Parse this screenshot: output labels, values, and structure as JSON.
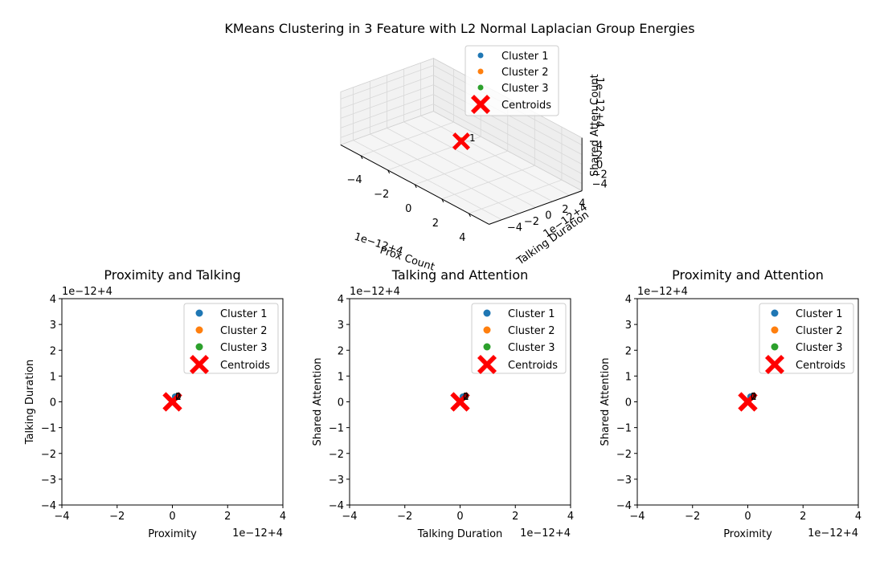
{
  "figure_title": "KMeans Clustering in 3 Feature with L2 Normal Laplacian Group Energies",
  "legend": {
    "series": [
      "Cluster 1",
      "Cluster 2",
      "Cluster 3"
    ],
    "centroids": "Centroids"
  },
  "colors": {
    "cluster_1": "#1f77b4",
    "cluster_2": "#ff7f0e",
    "cluster_3": "#2ca02c",
    "centroid": "#ff0000"
  },
  "chart_data": [
    {
      "type": "scatter3d",
      "title": "",
      "xlabel": "Prox Count",
      "ylabel": "Talking Duration",
      "zlabel": "Shared Atten Count",
      "offset_text": "1e−12+4",
      "ticks": [
        "−4",
        "−2",
        "0",
        "2",
        "4"
      ],
      "xlim": [
        -4,
        4
      ],
      "ylim": [
        -4,
        4
      ],
      "zlim": [
        -4,
        4
      ],
      "grid": true,
      "legend_position": "top-right",
      "points": [
        {
          "cluster": "Cluster 2",
          "x": 0,
          "y": 0,
          "z": 0,
          "label": "1"
        }
      ],
      "centroids": [
        {
          "x": 0,
          "y": 0,
          "z": 0
        }
      ]
    },
    {
      "type": "scatter",
      "title": "Proximity and Talking",
      "xlabel": "Proximity",
      "ylabel": "Talking Duration",
      "offset_x": "1e−12+4",
      "offset_y": "1e−12+4",
      "xticks": [
        "−4",
        "−2",
        "0",
        "2",
        "4"
      ],
      "yticks": [
        "−4",
        "−3",
        "−2",
        "−1",
        "0",
        "1",
        "2",
        "3",
        "4"
      ],
      "xlim": [
        -4,
        4
      ],
      "ylim": [
        -4,
        4
      ],
      "grid": false,
      "legend_position": "top-right",
      "points": [
        {
          "cluster": "Cluster 3",
          "x": 0.1,
          "y": 0.2
        },
        {
          "cluster": "Cluster 2",
          "x": 0.1,
          "y": 0.2
        },
        {
          "cluster": "Cluster 1",
          "x": 0.1,
          "y": 0.2
        }
      ],
      "point_labels": [
        {
          "x": 0.1,
          "y": 0.2,
          "text": "2"
        },
        {
          "x": 0.1,
          "y": 0.2,
          "text": "1"
        },
        {
          "x": 0.1,
          "y": 0.2,
          "text": "0"
        }
      ],
      "centroids": [
        {
          "x": 0,
          "y": 0
        },
        {
          "x": 0,
          "y": 0
        },
        {
          "x": 0,
          "y": 0
        }
      ]
    },
    {
      "type": "scatter",
      "title": "Talking and Attention",
      "xlabel": "Talking Duration",
      "ylabel": "Shared Attention",
      "offset_x": "1e−12+4",
      "offset_y": "1e−12+4",
      "xticks": [
        "−4",
        "−2",
        "0",
        "2",
        "4"
      ],
      "yticks": [
        "−4",
        "−3",
        "−2",
        "−1",
        "0",
        "1",
        "2",
        "3",
        "4"
      ],
      "xlim": [
        -4,
        4
      ],
      "ylim": [
        -4,
        4
      ],
      "grid": false,
      "legend_position": "top-right",
      "points": [
        {
          "cluster": "Cluster 3",
          "x": 0.1,
          "y": 0.2
        },
        {
          "cluster": "Cluster 2",
          "x": 0.1,
          "y": 0.2
        },
        {
          "cluster": "Cluster 1",
          "x": 0.1,
          "y": 0.2
        }
      ],
      "point_labels": [
        {
          "x": 0.1,
          "y": 0.2,
          "text": "2"
        },
        {
          "x": 0.1,
          "y": 0.2,
          "text": "1"
        },
        {
          "x": 0.1,
          "y": 0.2,
          "text": "0"
        }
      ],
      "centroids": [
        {
          "x": 0,
          "y": 0
        },
        {
          "x": 0,
          "y": 0
        },
        {
          "x": 0,
          "y": 0
        }
      ]
    },
    {
      "type": "scatter",
      "title": "Proximity and Attention",
      "xlabel": "Proximity",
      "ylabel": "Shared Attention",
      "offset_x": "1e−12+4",
      "offset_y": "1e−12+4",
      "xticks": [
        "−4",
        "−2",
        "0",
        "2",
        "4"
      ],
      "yticks": [
        "−4",
        "−3",
        "−2",
        "−1",
        "0",
        "1",
        "2",
        "3",
        "4"
      ],
      "xlim": [
        -4,
        4
      ],
      "ylim": [
        -4,
        4
      ],
      "grid": false,
      "legend_position": "top-right",
      "points": [
        {
          "cluster": "Cluster 3",
          "x": 0.1,
          "y": 0.2
        },
        {
          "cluster": "Cluster 2",
          "x": 0.1,
          "y": 0.2
        },
        {
          "cluster": "Cluster 1",
          "x": 0.1,
          "y": 0.2
        }
      ],
      "point_labels": [
        {
          "x": 0.1,
          "y": 0.2,
          "text": "2"
        },
        {
          "x": 0.1,
          "y": 0.2,
          "text": "1"
        },
        {
          "x": 0.1,
          "y": 0.2,
          "text": "0"
        }
      ],
      "centroids": [
        {
          "x": 0,
          "y": 0
        },
        {
          "x": 0,
          "y": 0
        },
        {
          "x": 0,
          "y": 0
        }
      ]
    }
  ]
}
